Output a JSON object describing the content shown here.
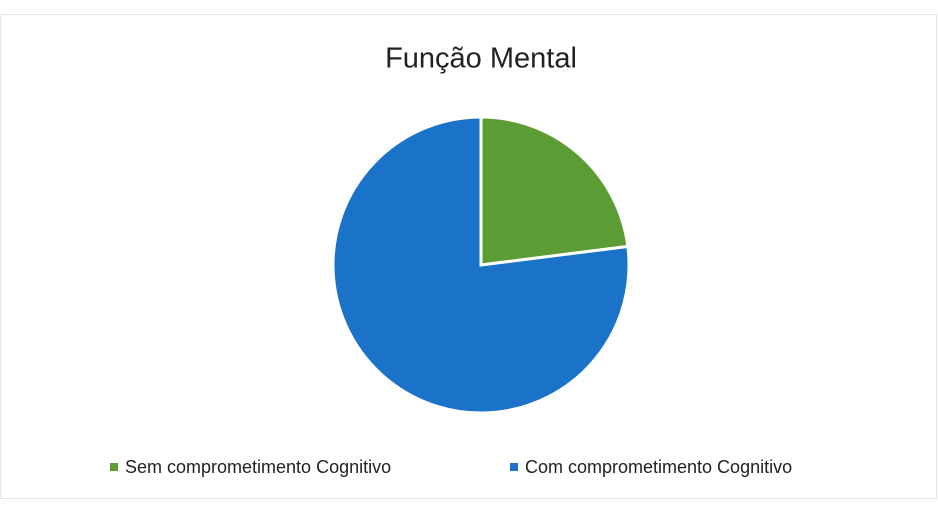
{
  "chart_data": {
    "type": "pie",
    "title": "Função Mental",
    "categories": [
      "Sem comprometimento Cognitivo",
      "Com comprometimento Cognitivo"
    ],
    "values": [
      23,
      77
    ],
    "colors": [
      "#5b9c35",
      "#1b72c9"
    ],
    "legend": "bottom"
  }
}
